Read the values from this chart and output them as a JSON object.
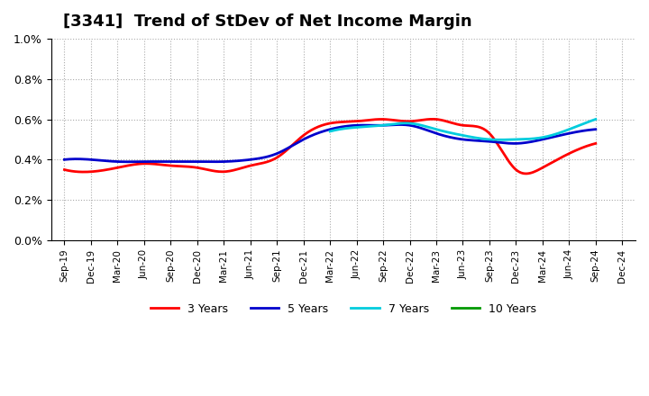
{
  "title": "[3341]  Trend of StDev of Net Income Margin",
  "title_fontsize": 13,
  "background_color": "#ffffff",
  "plot_background": "#ffffff",
  "grid_color": "#aaaaaa",
  "ylim": [
    0.0,
    0.01
  ],
  "yticks": [
    0.0,
    0.002,
    0.004,
    0.006,
    0.008,
    0.01
  ],
  "ytick_labels": [
    "0.0%",
    "0.2%",
    "0.4%",
    "0.6%",
    "0.8%",
    "1.0%"
  ],
  "x_labels": [
    "Sep-19",
    "Dec-19",
    "Mar-20",
    "Jun-20",
    "Sep-20",
    "Dec-20",
    "Mar-21",
    "Jun-21",
    "Sep-21",
    "Dec-21",
    "Mar-22",
    "Jun-22",
    "Sep-22",
    "Dec-22",
    "Mar-23",
    "Jun-23",
    "Sep-23",
    "Dec-23",
    "Mar-24",
    "Jun-24",
    "Sep-24",
    "Dec-24"
  ],
  "series": {
    "3 Years": {
      "color": "#ff0000",
      "linewidth": 2.0,
      "values": [
        0.0035,
        0.0034,
        0.0036,
        0.0038,
        0.0037,
        0.0036,
        0.0034,
        0.0037,
        0.0041,
        0.0052,
        0.0058,
        0.0059,
        0.006,
        0.0059,
        0.006,
        0.0057,
        0.0053,
        0.0035,
        0.0036,
        0.0043,
        0.0048,
        null
      ]
    },
    "5 Years": {
      "color": "#0000cc",
      "linewidth": 2.0,
      "values": [
        0.004,
        0.004,
        0.0039,
        0.0039,
        0.0039,
        0.0039,
        0.0039,
        0.004,
        0.0043,
        0.005,
        0.0055,
        0.0057,
        0.0057,
        0.0057,
        0.0053,
        0.005,
        0.0049,
        0.0048,
        0.005,
        0.0053,
        0.0055,
        null
      ]
    },
    "7 Years": {
      "color": "#00ccdd",
      "linewidth": 2.0,
      "values": [
        null,
        null,
        null,
        null,
        null,
        null,
        null,
        null,
        null,
        null,
        0.0054,
        0.0056,
        0.0057,
        0.0058,
        0.0055,
        0.0052,
        0.005,
        0.005,
        0.0051,
        0.0055,
        0.006,
        null
      ]
    },
    "10 Years": {
      "color": "#009900",
      "linewidth": 2.0,
      "values": [
        null,
        null,
        null,
        null,
        null,
        null,
        null,
        null,
        null,
        null,
        null,
        null,
        null,
        null,
        null,
        null,
        null,
        null,
        null,
        null,
        null,
        null
      ]
    }
  },
  "legend_labels": [
    "3 Years",
    "5 Years",
    "7 Years",
    "10 Years"
  ],
  "legend_colors": [
    "#ff0000",
    "#0000cc",
    "#00ccdd",
    "#009900"
  ]
}
